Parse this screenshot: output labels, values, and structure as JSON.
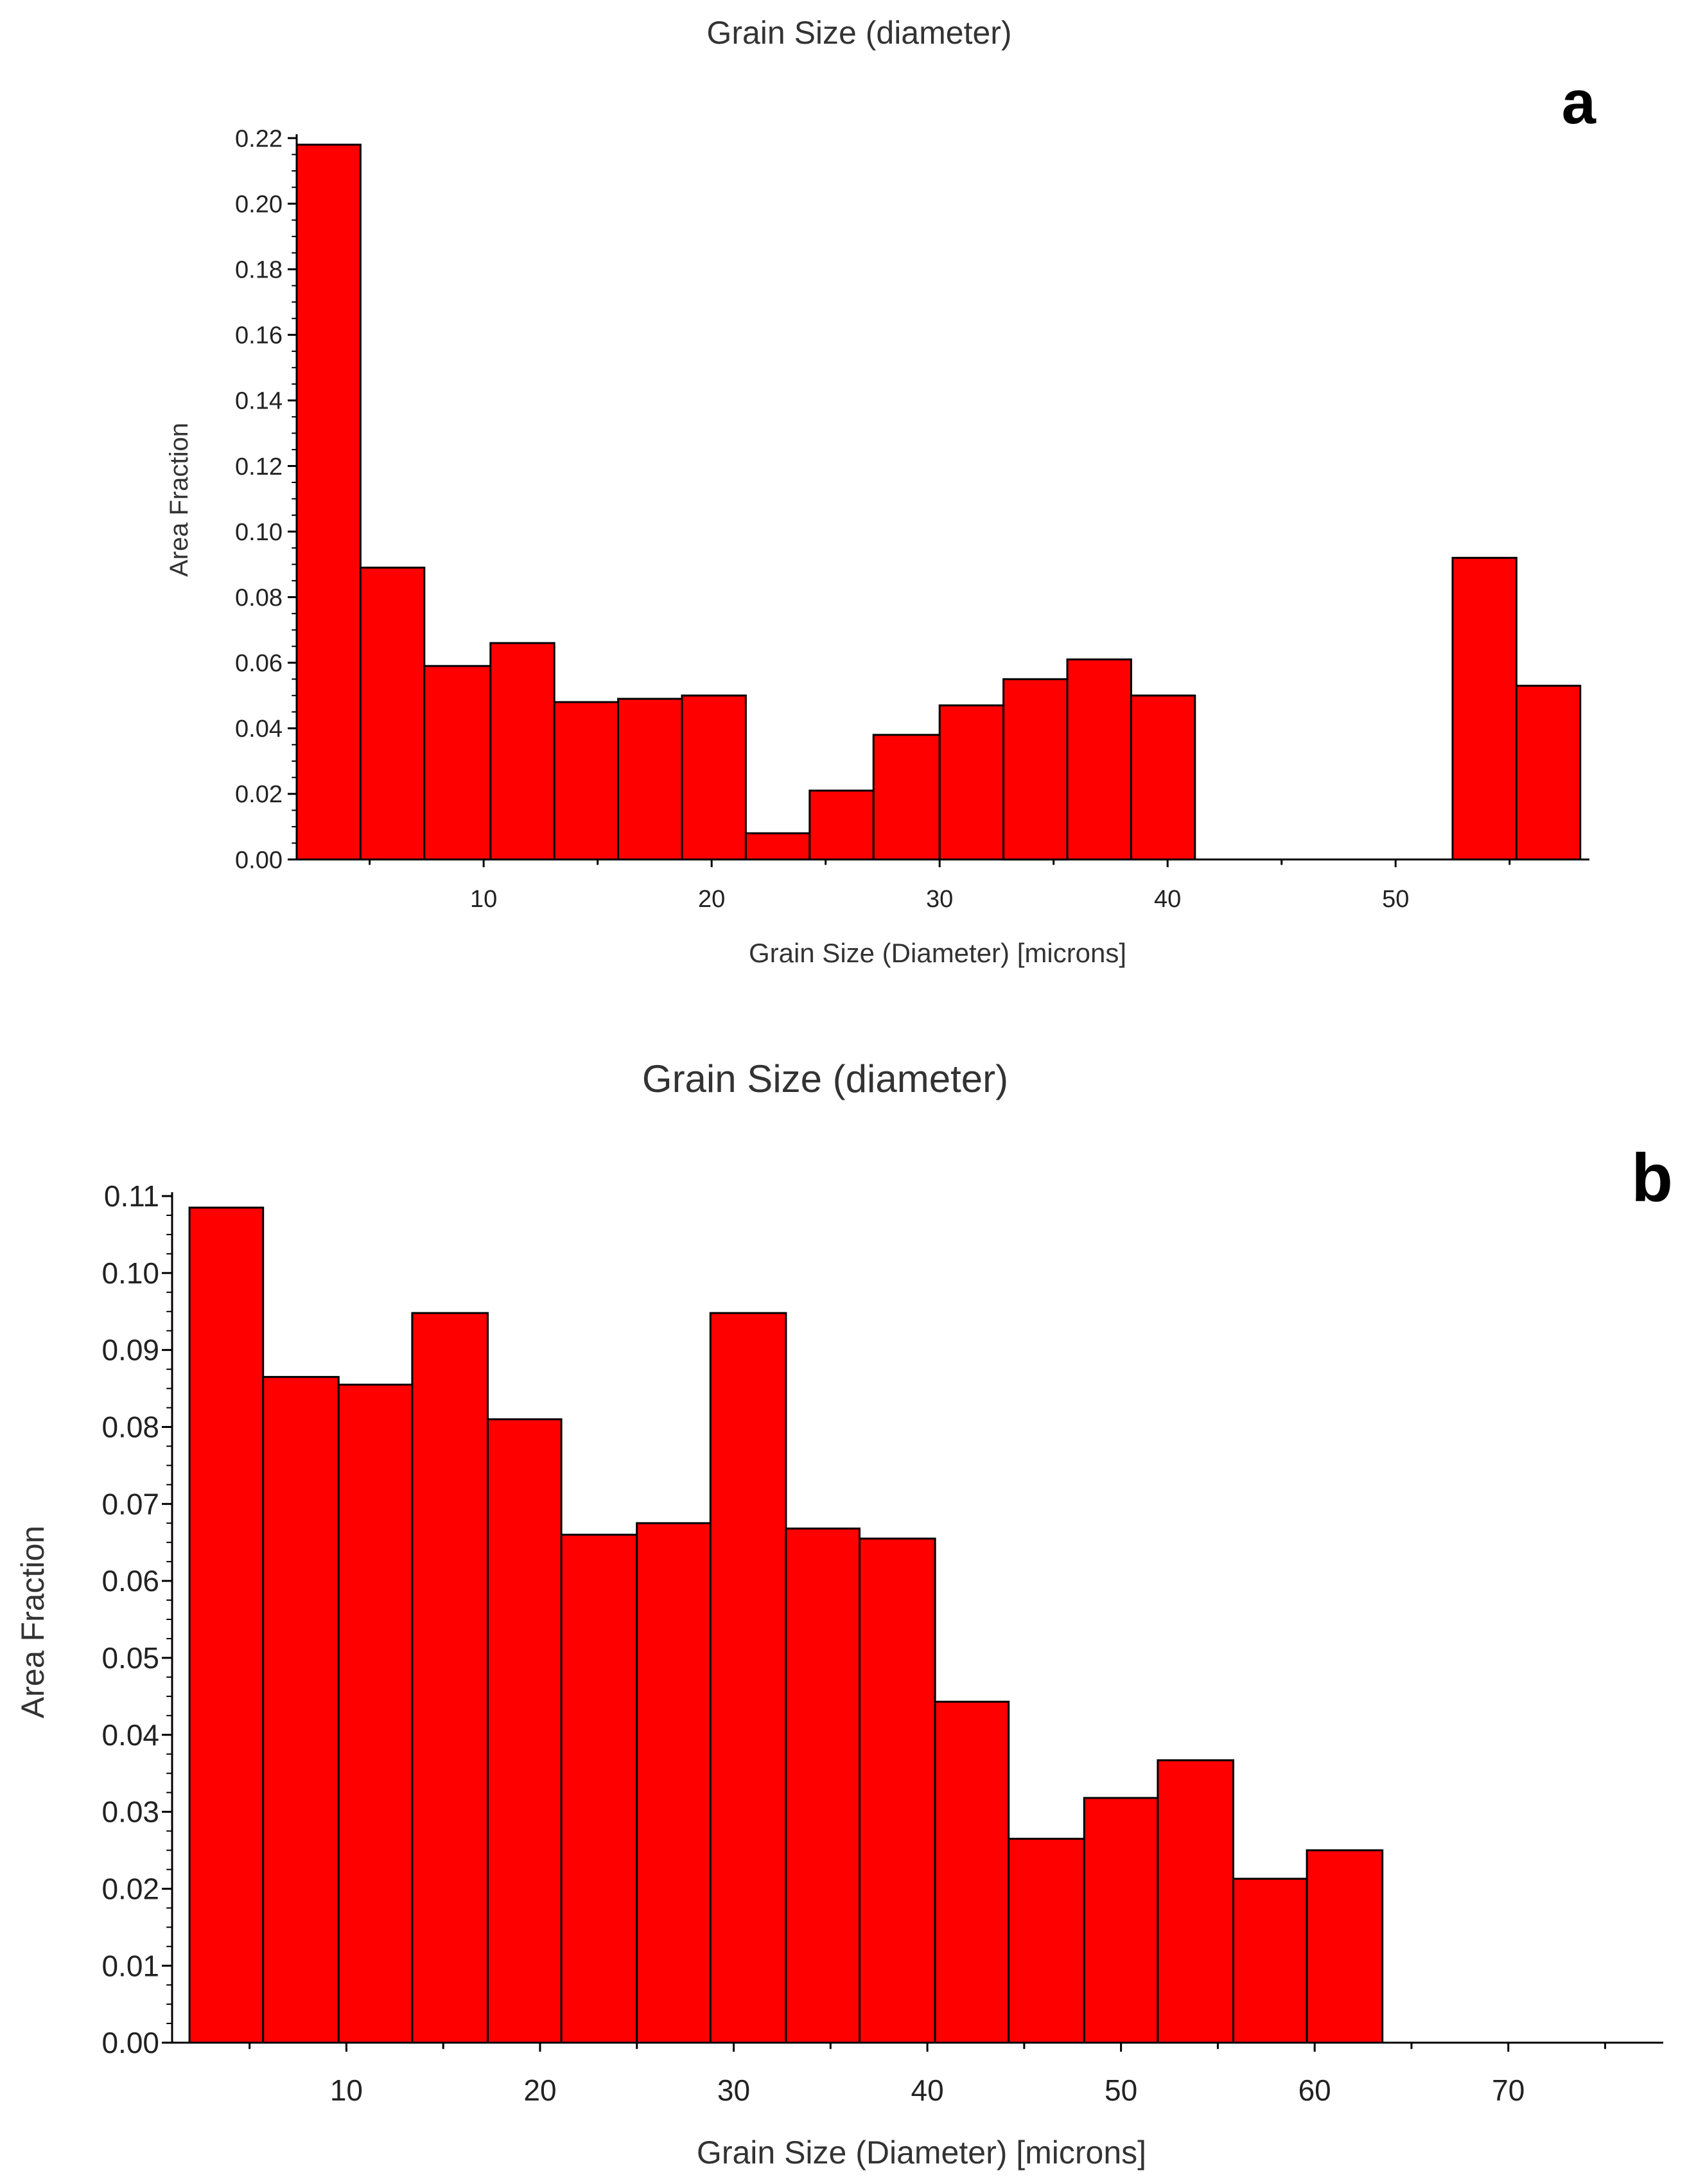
{
  "chart_data": [
    {
      "type": "bar",
      "panel_label": "a",
      "title": "Grain Size (diameter)",
      "xlabel": "Grain Size (Diameter) [microns]",
      "ylabel": "Area Fraction",
      "bar_color": "#ff0000",
      "edge_color": "#000000",
      "xlim": [
        1.8,
        58.5
      ],
      "ylim": [
        0,
        0.22
      ],
      "xticks": [
        10,
        20,
        30,
        40,
        50
      ],
      "xtick_labels": [
        "10",
        "20",
        "30",
        "40",
        "50"
      ],
      "yticks": [
        0,
        0.02,
        0.04,
        0.06,
        0.08,
        0.1,
        0.12,
        0.14,
        0.16,
        0.18,
        0.2,
        0.22
      ],
      "ytick_labels": [
        "0.00",
        "0.02",
        "0.04",
        "0.06",
        "0.08",
        "0.10",
        "0.12",
        "0.14",
        "0.16",
        "0.18",
        "0.20",
        "0.22"
      ],
      "bin_edges": [
        1.8,
        4.6,
        7.4,
        10.3,
        13.1,
        15.9,
        18.7,
        21.5,
        24.3,
        27.1,
        30.0,
        32.8,
        35.6,
        38.4,
        41.2,
        44.0,
        46.8,
        49.6,
        52.5,
        55.3,
        58.1
      ],
      "values": [
        0.218,
        0.089,
        0.059,
        0.066,
        0.048,
        0.049,
        0.05,
        0.008,
        0.021,
        0.038,
        0.047,
        0.055,
        0.061,
        0.05,
        0,
        0,
        0,
        0,
        0.092,
        0.053
      ],
      "grid": false
    },
    {
      "type": "bar",
      "panel_label": "b",
      "title": "Grain Size (diameter)",
      "xlabel": "Grain Size (Diameter) [microns]",
      "ylabel": "Area Fraction",
      "bar_color": "#ff0000",
      "edge_color": "#000000",
      "xlim": [
        1.0,
        78.0
      ],
      "ylim": [
        0,
        0.11
      ],
      "xticks": [
        10,
        20,
        30,
        40,
        50,
        60,
        70
      ],
      "xtick_labels": [
        "10",
        "20",
        "30",
        "40",
        "50",
        "60",
        "70"
      ],
      "yticks": [
        0,
        0.01,
        0.02,
        0.03,
        0.04,
        0.05,
        0.06,
        0.07,
        0.08,
        0.09,
        0.1,
        0.11
      ],
      "ytick_labels": [
        "0.00",
        "0.01",
        "0.02",
        "0.03",
        "0.04",
        "0.05",
        "0.06",
        "0.07",
        "0.08",
        "0.09",
        "0.10",
        "0.11"
      ],
      "bin_edges": [
        1.9,
        5.7,
        9.6,
        13.4,
        17.3,
        21.1,
        25.0,
        28.8,
        32.7,
        36.5,
        40.4,
        44.2,
        48.1,
        51.9,
        55.8,
        59.6,
        63.5
      ],
      "values": [
        0.1085,
        0.0865,
        0.0855,
        0.0948,
        0.081,
        0.066,
        0.0675,
        0.0948,
        0.0668,
        0.0655,
        0.0443,
        0.0265,
        0.0318,
        0.0367,
        0.0213,
        0.025
      ],
      "grid": false
    }
  ]
}
